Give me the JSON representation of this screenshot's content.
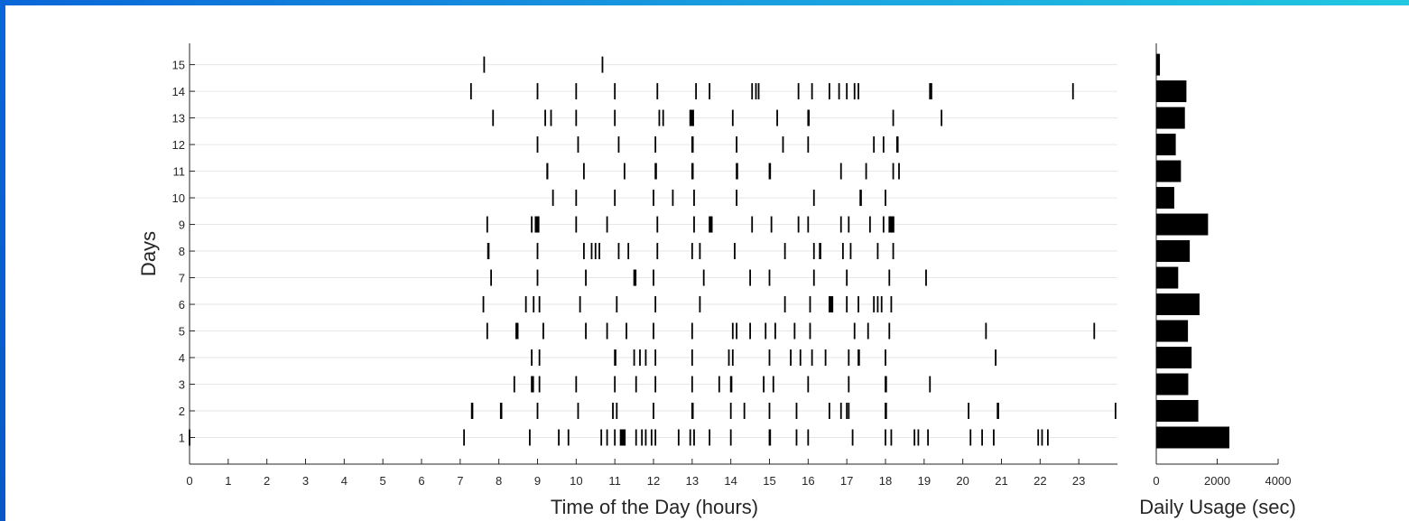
{
  "chart_data": [
    {
      "type": "event_raster",
      "xlabel": "Time of the Day (hours)",
      "ylabel": "Days",
      "xlim": [
        0,
        24
      ],
      "ylim": [
        0,
        15.8
      ],
      "x_ticks": [
        0,
        1,
        2,
        3,
        4,
        5,
        6,
        7,
        8,
        9,
        10,
        11,
        12,
        13,
        14,
        15,
        16,
        17,
        18,
        19,
        20,
        21,
        22,
        23
      ],
      "y_ticks": [
        1,
        2,
        3,
        4,
        5,
        6,
        7,
        8,
        9,
        10,
        11,
        12,
        13,
        14,
        15
      ],
      "grid": "horizontal",
      "events": [
        {
          "day": 15,
          "times": [
            [
              7.62,
              0.03
            ],
            [
              10.68,
              0.03
            ]
          ]
        },
        {
          "day": 14,
          "times": [
            [
              7.28,
              0.03
            ],
            [
              9.0,
              0.03
            ],
            [
              10.0,
              0.03
            ],
            [
              11.0,
              0.03
            ],
            [
              12.1,
              0.03
            ],
            [
              13.1,
              0.03
            ],
            [
              13.45,
              0.03
            ],
            [
              14.55,
              0.03
            ],
            [
              14.65,
              0.03
            ],
            [
              14.72,
              0.03
            ],
            [
              15.75,
              0.03
            ],
            [
              16.1,
              0.03
            ],
            [
              16.55,
              0.03
            ],
            [
              16.8,
              0.03
            ],
            [
              17.0,
              0.03
            ],
            [
              17.2,
              0.03
            ],
            [
              17.3,
              0.03
            ],
            [
              19.15,
              0.08
            ],
            [
              22.85,
              0.03
            ]
          ]
        },
        {
          "day": 13,
          "times": [
            [
              7.85,
              0.03
            ],
            [
              9.2,
              0.03
            ],
            [
              9.35,
              0.03
            ],
            [
              10.0,
              0.03
            ],
            [
              11.0,
              0.03
            ],
            [
              12.15,
              0.03
            ],
            [
              12.25,
              0.03
            ],
            [
              12.95,
              0.12
            ],
            [
              14.05,
              0.03
            ],
            [
              15.2,
              0.03
            ],
            [
              16.0,
              0.06
            ],
            [
              18.2,
              0.03
            ],
            [
              19.45,
              0.03
            ]
          ]
        },
        {
          "day": 12,
          "times": [
            [
              9.0,
              0.03
            ],
            [
              10.05,
              0.03
            ],
            [
              11.1,
              0.03
            ],
            [
              12.05,
              0.03
            ],
            [
              13.0,
              0.06
            ],
            [
              14.15,
              0.03
            ],
            [
              15.35,
              0.03
            ],
            [
              16.0,
              0.03
            ],
            [
              17.7,
              0.03
            ],
            [
              17.95,
              0.03
            ],
            [
              18.3,
              0.06
            ]
          ]
        },
        {
          "day": 11,
          "times": [
            [
              9.25,
              0.05
            ],
            [
              10.2,
              0.03
            ],
            [
              11.25,
              0.03
            ],
            [
              12.05,
              0.06
            ],
            [
              13.0,
              0.06
            ],
            [
              14.15,
              0.06
            ],
            [
              15.0,
              0.06
            ],
            [
              16.85,
              0.03
            ],
            [
              17.5,
              0.03
            ],
            [
              18.2,
              0.03
            ],
            [
              18.35,
              0.03
            ]
          ]
        },
        {
          "day": 10,
          "times": [
            [
              9.4,
              0.03
            ],
            [
              10.0,
              0.03
            ],
            [
              11.0,
              0.03
            ],
            [
              12.0,
              0.03
            ],
            [
              12.5,
              0.03
            ],
            [
              13.05,
              0.03
            ],
            [
              14.15,
              0.03
            ],
            [
              16.15,
              0.03
            ],
            [
              17.35,
              0.06
            ],
            [
              18.0,
              0.03
            ]
          ]
        },
        {
          "day": 9,
          "times": [
            [
              7.7,
              0.03
            ],
            [
              8.85,
              0.03
            ],
            [
              8.95,
              0.12
            ],
            [
              10.0,
              0.03
            ],
            [
              10.8,
              0.03
            ],
            [
              12.1,
              0.03
            ],
            [
              13.05,
              0.03
            ],
            [
              13.45,
              0.1
            ],
            [
              14.55,
              0.03
            ],
            [
              15.05,
              0.03
            ],
            [
              15.75,
              0.03
            ],
            [
              16.0,
              0.03
            ],
            [
              16.85,
              0.03
            ],
            [
              17.05,
              0.03
            ],
            [
              17.6,
              0.03
            ],
            [
              17.95,
              0.03
            ],
            [
              18.1,
              0.15
            ]
          ]
        },
        {
          "day": 8,
          "times": [
            [
              7.72,
              0.06
            ],
            [
              9.0,
              0.03
            ],
            [
              10.2,
              0.03
            ],
            [
              10.4,
              0.03
            ],
            [
              10.5,
              0.03
            ],
            [
              10.6,
              0.03
            ],
            [
              11.1,
              0.03
            ],
            [
              11.35,
              0.03
            ],
            [
              12.1,
              0.03
            ],
            [
              13.0,
              0.03
            ],
            [
              13.2,
              0.03
            ],
            [
              14.1,
              0.03
            ],
            [
              15.4,
              0.03
            ],
            [
              16.15,
              0.03
            ],
            [
              16.3,
              0.06
            ],
            [
              16.9,
              0.03
            ],
            [
              17.1,
              0.03
            ],
            [
              17.8,
              0.03
            ],
            [
              18.2,
              0.03
            ]
          ]
        },
        {
          "day": 7,
          "times": [
            [
              7.8,
              0.03
            ],
            [
              9.0,
              0.03
            ],
            [
              10.25,
              0.03
            ],
            [
              11.5,
              0.08
            ],
            [
              12.0,
              0.03
            ],
            [
              13.3,
              0.03
            ],
            [
              14.5,
              0.03
            ],
            [
              15.0,
              0.03
            ],
            [
              16.15,
              0.03
            ],
            [
              17.0,
              0.03
            ],
            [
              18.1,
              0.03
            ],
            [
              19.05,
              0.03
            ]
          ]
        },
        {
          "day": 6,
          "times": [
            [
              7.6,
              0.03
            ],
            [
              8.7,
              0.03
            ],
            [
              8.9,
              0.03
            ],
            [
              9.05,
              0.03
            ],
            [
              10.1,
              0.03
            ],
            [
              11.05,
              0.03
            ],
            [
              12.05,
              0.03
            ],
            [
              13.2,
              0.03
            ],
            [
              15.4,
              0.03
            ],
            [
              16.05,
              0.03
            ],
            [
              16.55,
              0.12
            ],
            [
              17.0,
              0.03
            ],
            [
              17.3,
              0.03
            ],
            [
              17.7,
              0.03
            ],
            [
              17.8,
              0.03
            ],
            [
              17.9,
              0.03
            ],
            [
              18.15,
              0.03
            ]
          ]
        },
        {
          "day": 5,
          "times": [
            [
              7.7,
              0.03
            ],
            [
              8.45,
              0.08
            ],
            [
              9.15,
              0.03
            ],
            [
              10.25,
              0.03
            ],
            [
              10.8,
              0.03
            ],
            [
              11.3,
              0.03
            ],
            [
              12.0,
              0.03
            ],
            [
              13.0,
              0.03
            ],
            [
              14.05,
              0.03
            ],
            [
              14.15,
              0.03
            ],
            [
              14.5,
              0.03
            ],
            [
              14.9,
              0.03
            ],
            [
              15.15,
              0.03
            ],
            [
              15.65,
              0.03
            ],
            [
              16.05,
              0.03
            ],
            [
              17.2,
              0.03
            ],
            [
              17.55,
              0.03
            ],
            [
              18.1,
              0.03
            ],
            [
              20.6,
              0.03
            ],
            [
              23.4,
              0.03
            ]
          ]
        },
        {
          "day": 4,
          "times": [
            [
              8.85,
              0.03
            ],
            [
              9.05,
              0.03
            ],
            [
              11.0,
              0.06
            ],
            [
              11.5,
              0.03
            ],
            [
              11.65,
              0.03
            ],
            [
              11.8,
              0.03
            ],
            [
              12.05,
              0.03
            ],
            [
              13.0,
              0.03
            ],
            [
              13.95,
              0.03
            ],
            [
              14.05,
              0.03
            ],
            [
              15.0,
              0.03
            ],
            [
              15.55,
              0.03
            ],
            [
              15.8,
              0.03
            ],
            [
              16.1,
              0.03
            ],
            [
              16.45,
              0.03
            ],
            [
              17.05,
              0.03
            ],
            [
              17.3,
              0.06
            ],
            [
              18.0,
              0.03
            ],
            [
              20.85,
              0.03
            ]
          ]
        },
        {
          "day": 3,
          "times": [
            [
              8.4,
              0.03
            ],
            [
              8.85,
              0.08
            ],
            [
              9.05,
              0.03
            ],
            [
              10.0,
              0.03
            ],
            [
              11.0,
              0.03
            ],
            [
              11.55,
              0.03
            ],
            [
              12.05,
              0.03
            ],
            [
              13.0,
              0.03
            ],
            [
              13.7,
              0.03
            ],
            [
              14.0,
              0.06
            ],
            [
              14.85,
              0.03
            ],
            [
              15.1,
              0.03
            ],
            [
              16.0,
              0.03
            ],
            [
              17.05,
              0.03
            ],
            [
              18.0,
              0.06
            ],
            [
              19.15,
              0.03
            ]
          ]
        },
        {
          "day": 2,
          "times": [
            [
              7.3,
              0.06
            ],
            [
              8.05,
              0.06
            ],
            [
              9.0,
              0.03
            ],
            [
              10.05,
              0.03
            ],
            [
              10.95,
              0.03
            ],
            [
              11.05,
              0.03
            ],
            [
              12.0,
              0.03
            ],
            [
              13.0,
              0.06
            ],
            [
              14.0,
              0.03
            ],
            [
              14.35,
              0.03
            ],
            [
              15.0,
              0.03
            ],
            [
              15.7,
              0.03
            ],
            [
              16.55,
              0.03
            ],
            [
              16.85,
              0.03
            ],
            [
              17.0,
              0.03
            ],
            [
              17.05,
              0.03
            ],
            [
              18.0,
              0.06
            ],
            [
              20.15,
              0.03
            ],
            [
              20.9,
              0.06
            ],
            [
              23.95,
              0.03
            ]
          ]
        },
        {
          "day": 1,
          "times": [
            [
              0.0,
              0.03
            ],
            [
              7.1,
              0.03
            ],
            [
              8.8,
              0.03
            ],
            [
              9.55,
              0.03
            ],
            [
              9.8,
              0.03
            ],
            [
              10.65,
              0.03
            ],
            [
              10.8,
              0.03
            ],
            [
              11.0,
              0.03
            ],
            [
              11.15,
              0.15
            ],
            [
              11.55,
              0.03
            ],
            [
              11.7,
              0.03
            ],
            [
              11.8,
              0.03
            ],
            [
              11.95,
              0.03
            ],
            [
              12.05,
              0.03
            ],
            [
              12.65,
              0.03
            ],
            [
              12.95,
              0.03
            ],
            [
              13.05,
              0.03
            ],
            [
              13.45,
              0.03
            ],
            [
              14.0,
              0.03
            ],
            [
              15.0,
              0.06
            ],
            [
              15.7,
              0.03
            ],
            [
              16.0,
              0.03
            ],
            [
              17.15,
              0.03
            ],
            [
              18.0,
              0.03
            ],
            [
              18.15,
              0.03
            ],
            [
              18.75,
              0.03
            ],
            [
              18.85,
              0.03
            ],
            [
              19.1,
              0.03
            ],
            [
              20.2,
              0.03
            ],
            [
              20.5,
              0.03
            ],
            [
              20.8,
              0.03
            ],
            [
              21.95,
              0.03
            ],
            [
              22.05,
              0.03
            ],
            [
              22.2,
              0.03
            ]
          ]
        }
      ]
    },
    {
      "type": "bar",
      "orientation": "horizontal",
      "xlabel": "Daily Usage (sec)",
      "xlim": [
        0,
        4000
      ],
      "x_ticks": [
        0,
        2000,
        4000
      ],
      "categories": [
        1,
        2,
        3,
        4,
        5,
        6,
        7,
        8,
        9,
        10,
        11,
        12,
        13,
        14,
        15
      ],
      "values": [
        2400,
        1380,
        1050,
        1160,
        1040,
        1420,
        720,
        1100,
        1700,
        590,
        810,
        640,
        940,
        990,
        120
      ]
    }
  ]
}
